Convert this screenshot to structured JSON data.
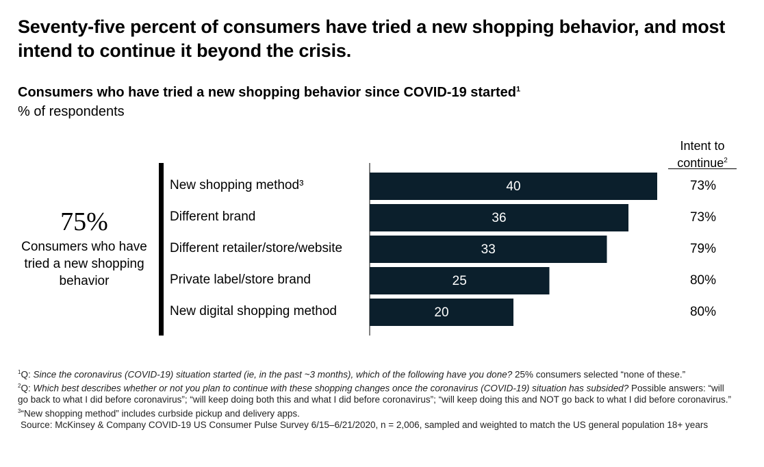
{
  "headline": "Seventy-five percent of consumers have tried a new shopping behavior, and most intend to continue it beyond the crisis.",
  "subtitle": "Consumers who have tried a new shopping behavior since COVID-19 started",
  "subtitle_sup": "1",
  "unit": "% of respondents",
  "intent_header_line1": "Intent to",
  "intent_header_line2": "continue",
  "intent_header_sup": "2",
  "summary": {
    "percent": "75%",
    "description": "Consumers who have tried a new shopping behavior"
  },
  "chart_data": {
    "type": "bar",
    "orientation": "horizontal",
    "title": "Consumers who have tried a new shopping behavior since COVID-19 started",
    "ylabel": "% of respondents",
    "categories": [
      "New shopping method³",
      "Different brand",
      "Different retailer/store/website",
      "Private label/store brand",
      "New digital shopping method"
    ],
    "values": [
      40,
      36,
      33,
      25,
      20
    ],
    "intent_to_continue": [
      "73%",
      "73%",
      "79%",
      "80%",
      "80%"
    ],
    "xlim": [
      0,
      40
    ],
    "bar_color": "#0b1f2c",
    "grid": false
  },
  "footnotes": {
    "fn1_mark": "1",
    "fn1_prefix": "Q: ",
    "fn1_italic": "Since the coronavirus (COVID-19) situation started (ie, in the past ~3 months), which of the following have you done?",
    "fn1_rest": " 25% consumers selected “none of these.”",
    "fn2_mark": "2",
    "fn2_prefix": "Q: ",
    "fn2_italic": "Which best describes whether or not you plan to continue with these shopping changes once the coronavirus (COVID-19) situation has subsided?",
    "fn2_rest": " Possible answers: “will go back to what I did before coronavirus”; “will keep doing both this and what I did before coronavirus”; “will keep doing this and NOT go back to what I did before coronavirus.”",
    "fn3_mark": "3",
    "fn3_text": "“New shopping method” includes curbside pickup and delivery apps.",
    "source": "Source: McKinsey & Company COVID-19 US Consumer Pulse Survey 6/15–6/21/2020, n = 2,006, sampled and weighted to match the US general population 18+ years"
  }
}
